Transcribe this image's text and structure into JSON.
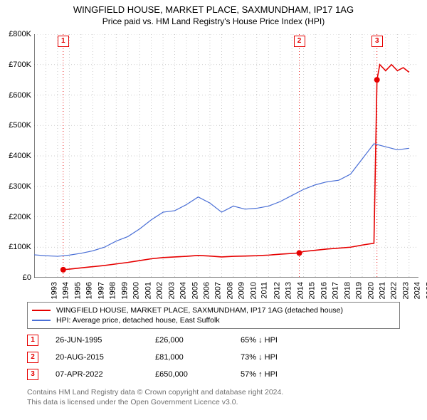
{
  "title": "WINGFIELD HOUSE, MARKET PLACE, SAXMUNDHAM, IP17 1AG",
  "subtitle": "Price paid vs. HM Land Registry's House Price Index (HPI)",
  "chart": {
    "type": "line",
    "background_color": "#ffffff",
    "grid_color": "#bcbcbc",
    "grid_dash": "1,3",
    "x_years": [
      1993,
      1994,
      1995,
      1996,
      1997,
      1998,
      1999,
      2000,
      2001,
      2002,
      2003,
      2004,
      2005,
      2006,
      2007,
      2008,
      2009,
      2010,
      2011,
      2012,
      2013,
      2014,
      2015,
      2016,
      2017,
      2018,
      2019,
      2020,
      2021,
      2022,
      2023,
      2024,
      2025
    ],
    "xlim": [
      1993,
      2025.8
    ],
    "ylim": [
      0,
      800000
    ],
    "ytick_step": 100000,
    "yticks": [
      "£0",
      "£100K",
      "£200K",
      "£300K",
      "£400K",
      "£500K",
      "£600K",
      "£700K",
      "£800K"
    ],
    "axis_color": "#000000",
    "label_fontsize": 11,
    "series": [
      {
        "name": "price_paid",
        "label": "WINGFIELD HOUSE, MARKET PLACE, SAXMUNDHAM, IP17 1AG (detached house)",
        "color": "#e60000",
        "line_width": 1.6,
        "points": [
          [
            1995.48,
            26000
          ],
          [
            1996,
            28000
          ],
          [
            1997,
            32000
          ],
          [
            1998,
            36000
          ],
          [
            1999,
            40000
          ],
          [
            2000,
            45000
          ],
          [
            2001,
            50000
          ],
          [
            2002,
            56000
          ],
          [
            2003,
            62000
          ],
          [
            2004,
            66000
          ],
          [
            2005,
            68000
          ],
          [
            2006,
            70000
          ],
          [
            2007,
            73000
          ],
          [
            2008,
            71000
          ],
          [
            2009,
            68000
          ],
          [
            2010,
            70000
          ],
          [
            2011,
            71000
          ],
          [
            2012,
            72000
          ],
          [
            2013,
            74000
          ],
          [
            2014,
            77000
          ],
          [
            2015.63,
            81000
          ],
          [
            2016,
            86000
          ],
          [
            2017,
            90000
          ],
          [
            2018,
            94000
          ],
          [
            2019,
            97000
          ],
          [
            2020,
            100000
          ],
          [
            2021,
            107000
          ],
          [
            2022.0,
            113000
          ],
          [
            2022.26,
            650000
          ],
          [
            2022.5,
            700000
          ],
          [
            2023,
            680000
          ],
          [
            2023.5,
            700000
          ],
          [
            2024,
            680000
          ],
          [
            2024.5,
            690000
          ],
          [
            2025,
            675000
          ]
        ],
        "sale_markers": [
          {
            "x": 1995.48,
            "y": 26000
          },
          {
            "x": 2015.63,
            "y": 81000
          },
          {
            "x": 2022.26,
            "y": 650000
          }
        ],
        "marker_radius": 4
      },
      {
        "name": "hpi",
        "label": "HPI: Average price, detached house, East Suffolk",
        "color": "#4a6fd6",
        "line_width": 1.2,
        "points": [
          [
            1993,
            75000
          ],
          [
            1994,
            72000
          ],
          [
            1995,
            70000
          ],
          [
            1996,
            74000
          ],
          [
            1997,
            80000
          ],
          [
            1998,
            88000
          ],
          [
            1999,
            100000
          ],
          [
            2000,
            120000
          ],
          [
            2001,
            135000
          ],
          [
            2002,
            160000
          ],
          [
            2003,
            190000
          ],
          [
            2004,
            215000
          ],
          [
            2005,
            220000
          ],
          [
            2006,
            240000
          ],
          [
            2007,
            265000
          ],
          [
            2008,
            245000
          ],
          [
            2009,
            215000
          ],
          [
            2010,
            235000
          ],
          [
            2011,
            225000
          ],
          [
            2012,
            228000
          ],
          [
            2013,
            235000
          ],
          [
            2014,
            250000
          ],
          [
            2015,
            270000
          ],
          [
            2016,
            290000
          ],
          [
            2017,
            305000
          ],
          [
            2018,
            315000
          ],
          [
            2019,
            320000
          ],
          [
            2020,
            340000
          ],
          [
            2021,
            390000
          ],
          [
            2022,
            440000
          ],
          [
            2023,
            430000
          ],
          [
            2024,
            420000
          ],
          [
            2025,
            425000
          ]
        ]
      }
    ],
    "event_lines": [
      {
        "num": "1",
        "x": 1995.48,
        "color": "#e60000"
      },
      {
        "num": "2",
        "x": 2015.63,
        "color": "#e60000"
      },
      {
        "num": "3",
        "x": 2022.26,
        "color": "#e60000"
      }
    ]
  },
  "legend": {
    "border_color": "#808080",
    "items": [
      {
        "color": "#e60000",
        "width": 2,
        "label": "WINGFIELD HOUSE, MARKET PLACE, SAXMUNDHAM, IP17 1AG (detached house)"
      },
      {
        "color": "#4a6fd6",
        "width": 1.2,
        "label": "HPI: Average price, detached house, East Suffolk"
      }
    ]
  },
  "sales": [
    {
      "num": "1",
      "color": "#e60000",
      "date": "26-JUN-1995",
      "price": "£26,000",
      "hpi": "65% ↓ HPI"
    },
    {
      "num": "2",
      "color": "#e60000",
      "date": "20-AUG-2015",
      "price": "£81,000",
      "hpi": "73% ↓ HPI"
    },
    {
      "num": "3",
      "color": "#e60000",
      "date": "07-APR-2022",
      "price": "£650,000",
      "hpi": "57% ↑ HPI"
    }
  ],
  "footer": {
    "line1": "Contains HM Land Registry data © Crown copyright and database right 2024.",
    "line2": "This data is licensed under the Open Government Licence v3.0.",
    "color": "#707070"
  }
}
